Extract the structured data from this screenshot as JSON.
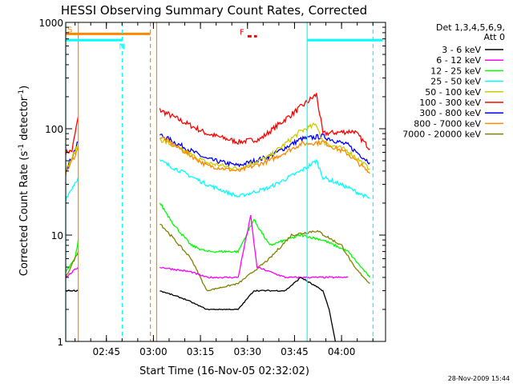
{
  "chart_data": {
    "type": "line",
    "title": "HESSI Observing Summary Count Rates, Corrected",
    "xlabel": "Start Time (16-Nov-05 02:32:02)",
    "ylabel_main": "Corrected Count Rate (s",
    "ylabel_sup1": "-1",
    "ylabel_mid": " detector",
    "ylabel_sup2": "-1",
    "ylabel_end": ")",
    "yscale": "log",
    "ylim": [
      1,
      1000
    ],
    "xlim_minutes": [
      0,
      102
    ],
    "y_ticks": [
      {
        "value": 1,
        "label": "1"
      },
      {
        "value": 10,
        "label": "10"
      },
      {
        "value": 100,
        "label": "100"
      },
      {
        "value": 1000,
        "label": "1000"
      }
    ],
    "x_ticks": [
      {
        "minute": 12.97,
        "label": "02:45"
      },
      {
        "minute": 27.97,
        "label": "03:00"
      },
      {
        "minute": 42.97,
        "label": "03:15"
      },
      {
        "minute": 57.97,
        "label": "03:30"
      },
      {
        "minute": 72.97,
        "label": "03:45"
      },
      {
        "minute": 87.97,
        "label": "04:00"
      }
    ],
    "legend_title": [
      "Det 1,3,4,5,6,9,",
      "Att 0"
    ],
    "legend_placement": "right",
    "series": [
      {
        "name": "3 - 6 keV",
        "color": "#000000"
      },
      {
        "name": "6 - 12 keV",
        "color": "#ff00ff"
      },
      {
        "name": "12 - 25 keV",
        "color": "#00ff00"
      },
      {
        "name": "25 - 50 keV",
        "color": "#00ffff"
      },
      {
        "name": "50 - 100 keV",
        "color": "#cccc00"
      },
      {
        "name": "100 - 300 keV",
        "color": "#ff0000"
      },
      {
        "name": "300 - 800 keV",
        "color": "#0000ff"
      },
      {
        "name": "800 - 7000 keV",
        "color": "#ff8800"
      },
      {
        "name": "7000 - 20000 keV",
        "color": "#808000"
      }
    ],
    "series_profiles": [
      {
        "series": 5,
        "segments": [
          [
            [
              0,
              60
            ],
            [
              2,
              62
            ],
            [
              4,
              130
            ]
          ],
          [
            [
              30,
              150
            ],
            [
              45,
              90
            ],
            [
              55,
              75
            ],
            [
              62,
              80
            ],
            [
              75,
              160
            ],
            [
              80,
              210
            ],
            [
              82,
              90
            ],
            [
              92,
              95
            ],
            [
              97,
              65
            ]
          ]
        ]
      },
      {
        "series": 6,
        "segments": [
          [
            [
              0,
              40
            ],
            [
              4,
              75
            ]
          ],
          [
            [
              30,
              88
            ],
            [
              45,
              52
            ],
            [
              55,
              45
            ],
            [
              65,
              55
            ],
            [
              75,
              80
            ],
            [
              82,
              85
            ],
            [
              90,
              70
            ],
            [
              97,
              48
            ]
          ]
        ]
      },
      {
        "series": 4,
        "segments": [
          [
            [
              0,
              40
            ],
            [
              4,
              70
            ]
          ],
          [
            [
              30,
              80
            ],
            [
              45,
              48
            ],
            [
              55,
              42
            ],
            [
              65,
              55
            ],
            [
              75,
              95
            ],
            [
              80,
              110
            ],
            [
              82,
              75
            ],
            [
              90,
              62
            ],
            [
              97,
              42
            ]
          ]
        ]
      },
      {
        "series": 7,
        "segments": [
          [
            [
              0,
              38
            ],
            [
              4,
              65
            ]
          ],
          [
            [
              30,
              85
            ],
            [
              45,
              45
            ],
            [
              55,
              40
            ],
            [
              65,
              50
            ],
            [
              75,
              72
            ],
            [
              82,
              75
            ],
            [
              90,
              58
            ],
            [
              97,
              38
            ]
          ]
        ]
      },
      {
        "series": 3,
        "segments": [
          [
            [
              0,
              22
            ],
            [
              4,
              35
            ]
          ],
          [
            [
              30,
              50
            ],
            [
              45,
              30
            ],
            [
              55,
              23
            ],
            [
              65,
              28
            ],
            [
              75,
              40
            ],
            [
              80,
              50
            ],
            [
              82,
              35
            ],
            [
              90,
              28
            ],
            [
              97,
              22
            ]
          ]
        ]
      },
      {
        "series": 2,
        "segments": [
          [
            [
              0,
              4.5
            ],
            [
              3,
              6
            ],
            [
              4,
              9
            ]
          ],
          [
            [
              30,
              20
            ],
            [
              35,
              12
            ],
            [
              40,
              8
            ],
            [
              45,
              7
            ],
            [
              55,
              7
            ],
            [
              60,
              14
            ],
            [
              65,
              8
            ],
            [
              75,
              10
            ],
            [
              82,
              9
            ],
            [
              90,
              7
            ],
            [
              97,
              4
            ]
          ]
        ]
      },
      {
        "series": 8,
        "segments": [
          [
            [
              0,
              4
            ],
            [
              4,
              7
            ]
          ],
          [
            [
              30,
              13
            ],
            [
              40,
              6
            ],
            [
              45,
              3
            ],
            [
              55,
              3.5
            ],
            [
              65,
              6
            ],
            [
              72,
              10
            ],
            [
              80,
              11
            ],
            [
              88,
              8
            ],
            [
              92,
              5
            ],
            [
              97,
              3.5
            ]
          ]
        ]
      },
      {
        "series": 1,
        "segments": [
          [
            [
              0,
              4
            ],
            [
              4,
              5
            ]
          ],
          [
            [
              30,
              5
            ],
            [
              40,
              4.5
            ],
            [
              45,
              4
            ],
            [
              55,
              4
            ],
            [
              57,
              8
            ],
            [
              59,
              15
            ],
            [
              61,
              5
            ],
            [
              70,
              4
            ],
            [
              75,
              4
            ],
            [
              85,
              4
            ],
            [
              90,
              4
            ]
          ]
        ]
      },
      {
        "series": 0,
        "segments": [
          [
            [
              0,
              3
            ],
            [
              4,
              3
            ]
          ],
          [
            [
              30,
              3
            ],
            [
              38,
              2.5
            ],
            [
              45,
              2
            ],
            [
              55,
              2
            ],
            [
              60,
              3
            ],
            [
              70,
              3
            ],
            [
              75,
              4
            ],
            [
              82,
              3
            ],
            [
              84,
              2
            ],
            [
              86,
              1
            ]
          ]
        ]
      }
    ],
    "flags": [
      {
        "letter": "S",
        "color": "#ff8800",
        "bar_from": 0,
        "bar_to": 27,
        "level": 780,
        "edge_lines": [
          4,
          27,
          29
        ]
      },
      {
        "letter": "N",
        "color": "#00ffff",
        "bar_from": 0,
        "bar_to": 18,
        "level": 680,
        "edge_lines": [
          0,
          18,
          77,
          98
        ],
        "bar2_from": 77,
        "bar2_to": 101
      },
      {
        "letter": "F",
        "color": "#ff0000",
        "bar_from": 58,
        "bar_to": 61,
        "level": 740,
        "edge_lines": []
      }
    ]
  },
  "footer_timestamp": "28-Nov-2009 15:44"
}
